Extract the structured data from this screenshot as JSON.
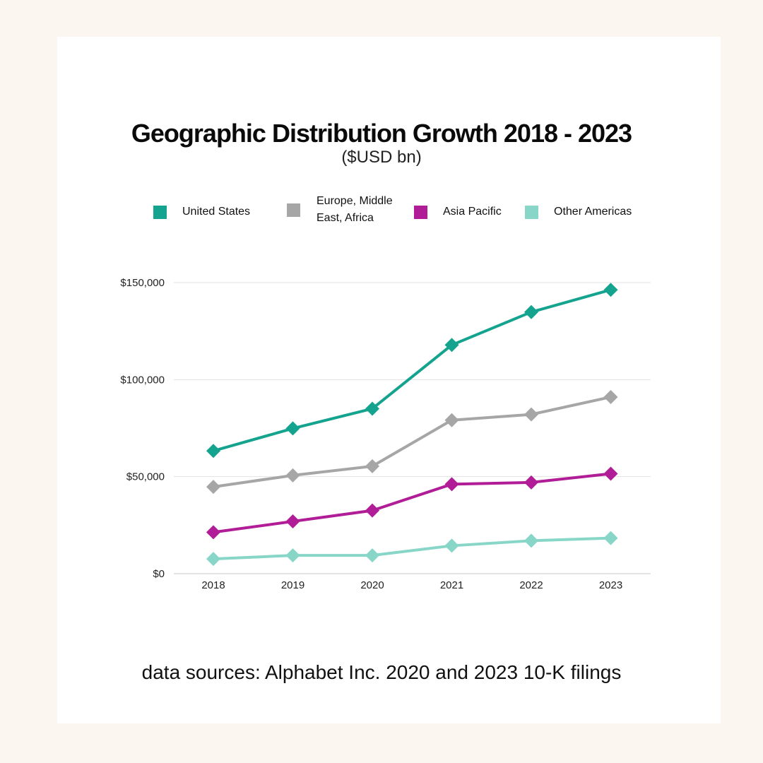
{
  "chart_data": {
    "type": "line",
    "title": "Geographic Distribution Growth 2018 - 2023",
    "subtitle": "($USD bn)",
    "xlabel": "",
    "ylabel": "",
    "x": [
      "2018",
      "2019",
      "2020",
      "2021",
      "2022",
      "2023"
    ],
    "ylim": [
      0,
      150000
    ],
    "yticks": [
      0,
      50000,
      100000,
      150000
    ],
    "ytick_labels": [
      "$0",
      "$50,000",
      "$100,000",
      "$150,000"
    ],
    "grid": true,
    "legend_position": "top",
    "series": [
      {
        "name": "United States",
        "color": "#14a38e",
        "values": [
          63269,
          74843,
          85014,
          117854,
          134814,
          146286
        ]
      },
      {
        "name": "Europe, Middle East, Africa",
        "color": "#a6a6a6",
        "values": [
          44739,
          50645,
          55370,
          79107,
          82062,
          91038
        ]
      },
      {
        "name": "Asia Pacific",
        "color": "#b01d96",
        "values": [
          21341,
          26928,
          32550,
          46123,
          47024,
          51514
        ]
      },
      {
        "name": "Other Americas",
        "color": "#88d6c8",
        "values": [
          7608,
          9417,
          9417,
          14404,
          16976,
          18320
        ]
      }
    ]
  },
  "legend": [
    {
      "label_lines": [
        "United States"
      ],
      "color": "#14a38e"
    },
    {
      "label_lines": [
        "Europe, Middle",
        "East, Africa"
      ],
      "color": "#a6a6a6"
    },
    {
      "label_lines": [
        "Asia Pacific"
      ],
      "color": "#b01d96"
    },
    {
      "label_lines": [
        "Other Americas"
      ],
      "color": "#88d6c8"
    }
  ],
  "footer": "data sources: Alphabet Inc. 2020 and 2023 10-K filings"
}
